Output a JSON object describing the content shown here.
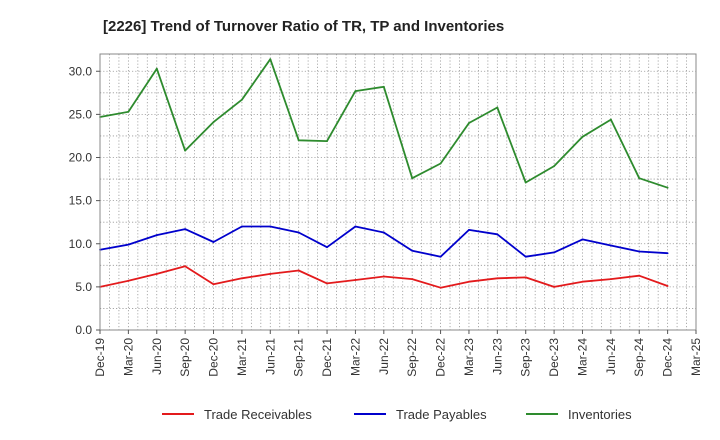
{
  "chart_data": {
    "type": "line",
    "title": "[2226]  Trend of Turnover Ratio of TR, TP and Inventories",
    "xlabel": "",
    "ylabel": "",
    "ylim": [
      0,
      32
    ],
    "yticks": [
      0.0,
      5.0,
      10.0,
      15.0,
      20.0,
      25.0,
      30.0
    ],
    "ytick_labels": [
      "0.0",
      "5.0",
      "10.0",
      "15.0",
      "20.0",
      "25.0",
      "30.0"
    ],
    "x_tick_labels": [
      "Dec-19",
      "Mar-20",
      "Jun-20",
      "Sep-20",
      "Dec-20",
      "Mar-21",
      "Jun-21",
      "Sep-21",
      "Dec-21",
      "Mar-22",
      "Jun-22",
      "Sep-22",
      "Dec-22",
      "Mar-23",
      "Jun-23",
      "Sep-23",
      "Dec-23",
      "Mar-24",
      "Jun-24",
      "Sep-24",
      "Dec-24",
      "Mar-25"
    ],
    "x": [
      "Dec-19",
      "Mar-20",
      "Jun-20",
      "Sep-20",
      "Dec-20",
      "Mar-21",
      "Jun-21",
      "Sep-21",
      "Dec-21",
      "Mar-22",
      "Jun-22",
      "Sep-22",
      "Dec-22",
      "Mar-23",
      "Jun-23",
      "Sep-23",
      "Dec-23",
      "Mar-24",
      "Jun-24",
      "Sep-24",
      "Dec-24"
    ],
    "grid": true,
    "legend_position": "bottom",
    "series": [
      {
        "name": "Trade Receivables",
        "color": "#e31a1c",
        "values": [
          5.0,
          5.7,
          6.5,
          7.4,
          5.3,
          6.0,
          6.5,
          6.9,
          5.4,
          5.8,
          6.2,
          5.9,
          4.9,
          5.6,
          6.0,
          6.1,
          5.0,
          5.6,
          5.9,
          6.3,
          5.1
        ]
      },
      {
        "name": "Trade Payables",
        "color": "#0000cc",
        "values": [
          9.3,
          9.9,
          11.0,
          11.7,
          10.2,
          12.0,
          12.0,
          11.3,
          9.6,
          12.0,
          11.3,
          9.2,
          8.5,
          11.6,
          11.1,
          8.5,
          9.0,
          10.5,
          9.8,
          9.1,
          8.9
        ]
      },
      {
        "name": "Inventories",
        "color": "#2e8b2e",
        "values": [
          24.7,
          25.3,
          30.3,
          20.8,
          24.1,
          26.7,
          31.4,
          22.0,
          21.9,
          27.7,
          28.2,
          17.6,
          19.3,
          24.0,
          25.8,
          17.1,
          19.0,
          22.4,
          24.4,
          17.6,
          16.5
        ]
      }
    ]
  }
}
